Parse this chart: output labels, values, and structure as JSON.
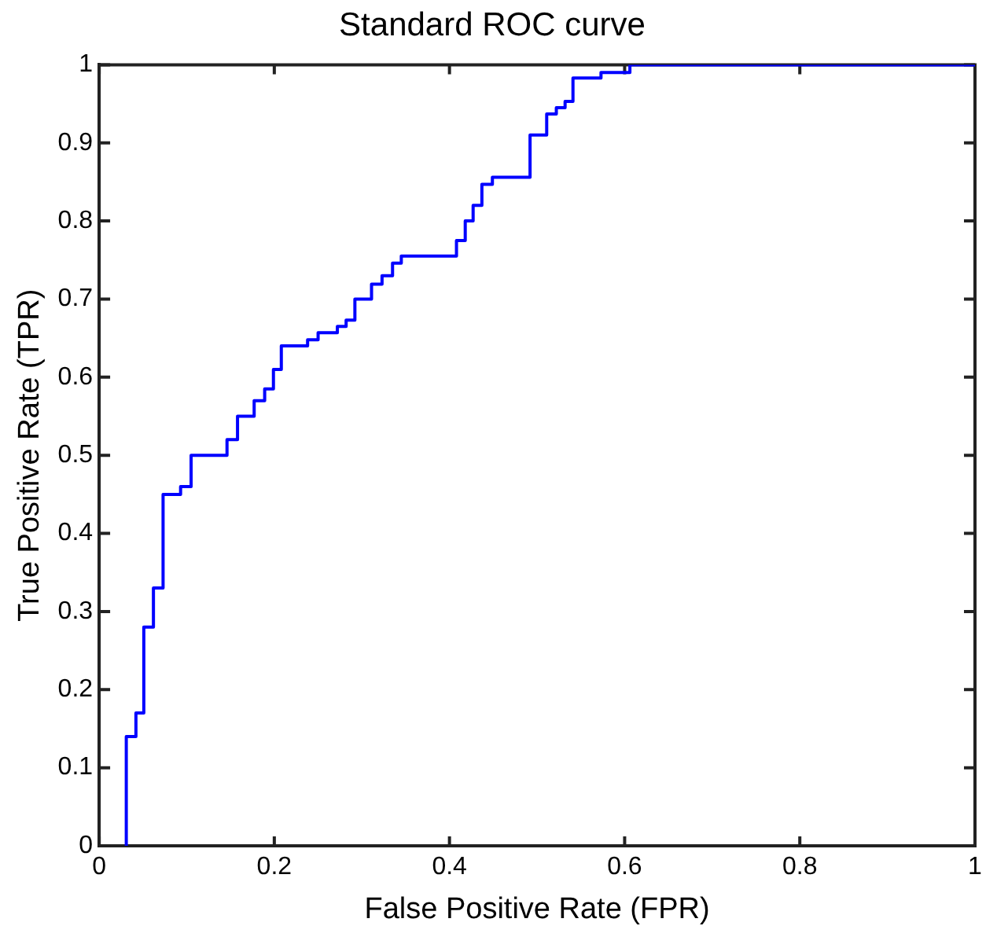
{
  "chart_data": {
    "type": "step",
    "title": "Standard ROC curve",
    "xlabel": "False Positive Rate (FPR)",
    "ylabel": "True Positive Rate (TPR)",
    "series": [
      {
        "color": "#0000ff",
        "x": [
          0.031,
          0.031,
          0.042,
          0.051,
          0.062,
          0.073,
          0.093,
          0.105,
          0.146,
          0.158,
          0.177,
          0.189,
          0.199,
          0.208,
          0.238,
          0.25,
          0.272,
          0.282,
          0.292,
          0.311,
          0.323,
          0.335,
          0.345,
          0.408,
          0.418,
          0.427,
          0.437,
          0.449,
          0.492,
          0.511,
          0.522,
          0.532,
          0.541,
          0.573,
          0.606,
          1
        ],
        "values": [
          0,
          0.14,
          0.17,
          0.28,
          0.33,
          0.45,
          0.46,
          0.5,
          0.52,
          0.55,
          0.57,
          0.585,
          0.61,
          0.64,
          0.648,
          0.657,
          0.665,
          0.673,
          0.7,
          0.719,
          0.73,
          0.746,
          0.755,
          0.775,
          0.8,
          0.82,
          0.847,
          0.856,
          0.91,
          0.937,
          0.945,
          0.953,
          0.983,
          0.99,
          1,
          1
        ]
      }
    ],
    "xlim": [
      0,
      1
    ],
    "xticks": [
      0,
      0.2,
      0.4,
      0.6,
      0.8,
      1
    ],
    "ylim": [
      0,
      1
    ],
    "yticks": [
      0,
      0.1,
      0.2,
      0.3,
      0.4,
      0.5,
      0.6,
      0.7,
      0.8,
      0.9,
      1
    ],
    "grid": false,
    "legend": false,
    "marker": "none",
    "line_style": "solid"
  }
}
